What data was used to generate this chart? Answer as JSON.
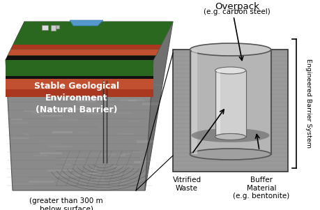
{
  "bg_color": "#ffffff",
  "labels": {
    "overpack": "Overpack",
    "overpack_sub": "(e.g. carbon steel)",
    "engineered": "Engineered Barrier System",
    "stable_geo": "Stable Geological\nEnvironment\n(Natural Barrier)",
    "depth": "(greater than 300 m\nbelow surface)",
    "vitrified": "Vitrified\nWaste",
    "buffer": "Buffer\nMaterial\n(e.g. bentonite)"
  },
  "geo_block": {
    "rock_color": "#909090",
    "rock_dark": "#707070",
    "rock_side": "#787878",
    "green_top": "#2d6b20",
    "soil_red": "#aa4422",
    "soil_red2": "#cc5533",
    "soil_dark": "#1a1a1a",
    "water_blue": "#5599cc"
  },
  "canister": {
    "buffer_bg": "#a0a0a0",
    "overpack_gray": "#909090",
    "inner_light": "#d0d0d0",
    "vitrified_gray": "#b8b8b8"
  }
}
